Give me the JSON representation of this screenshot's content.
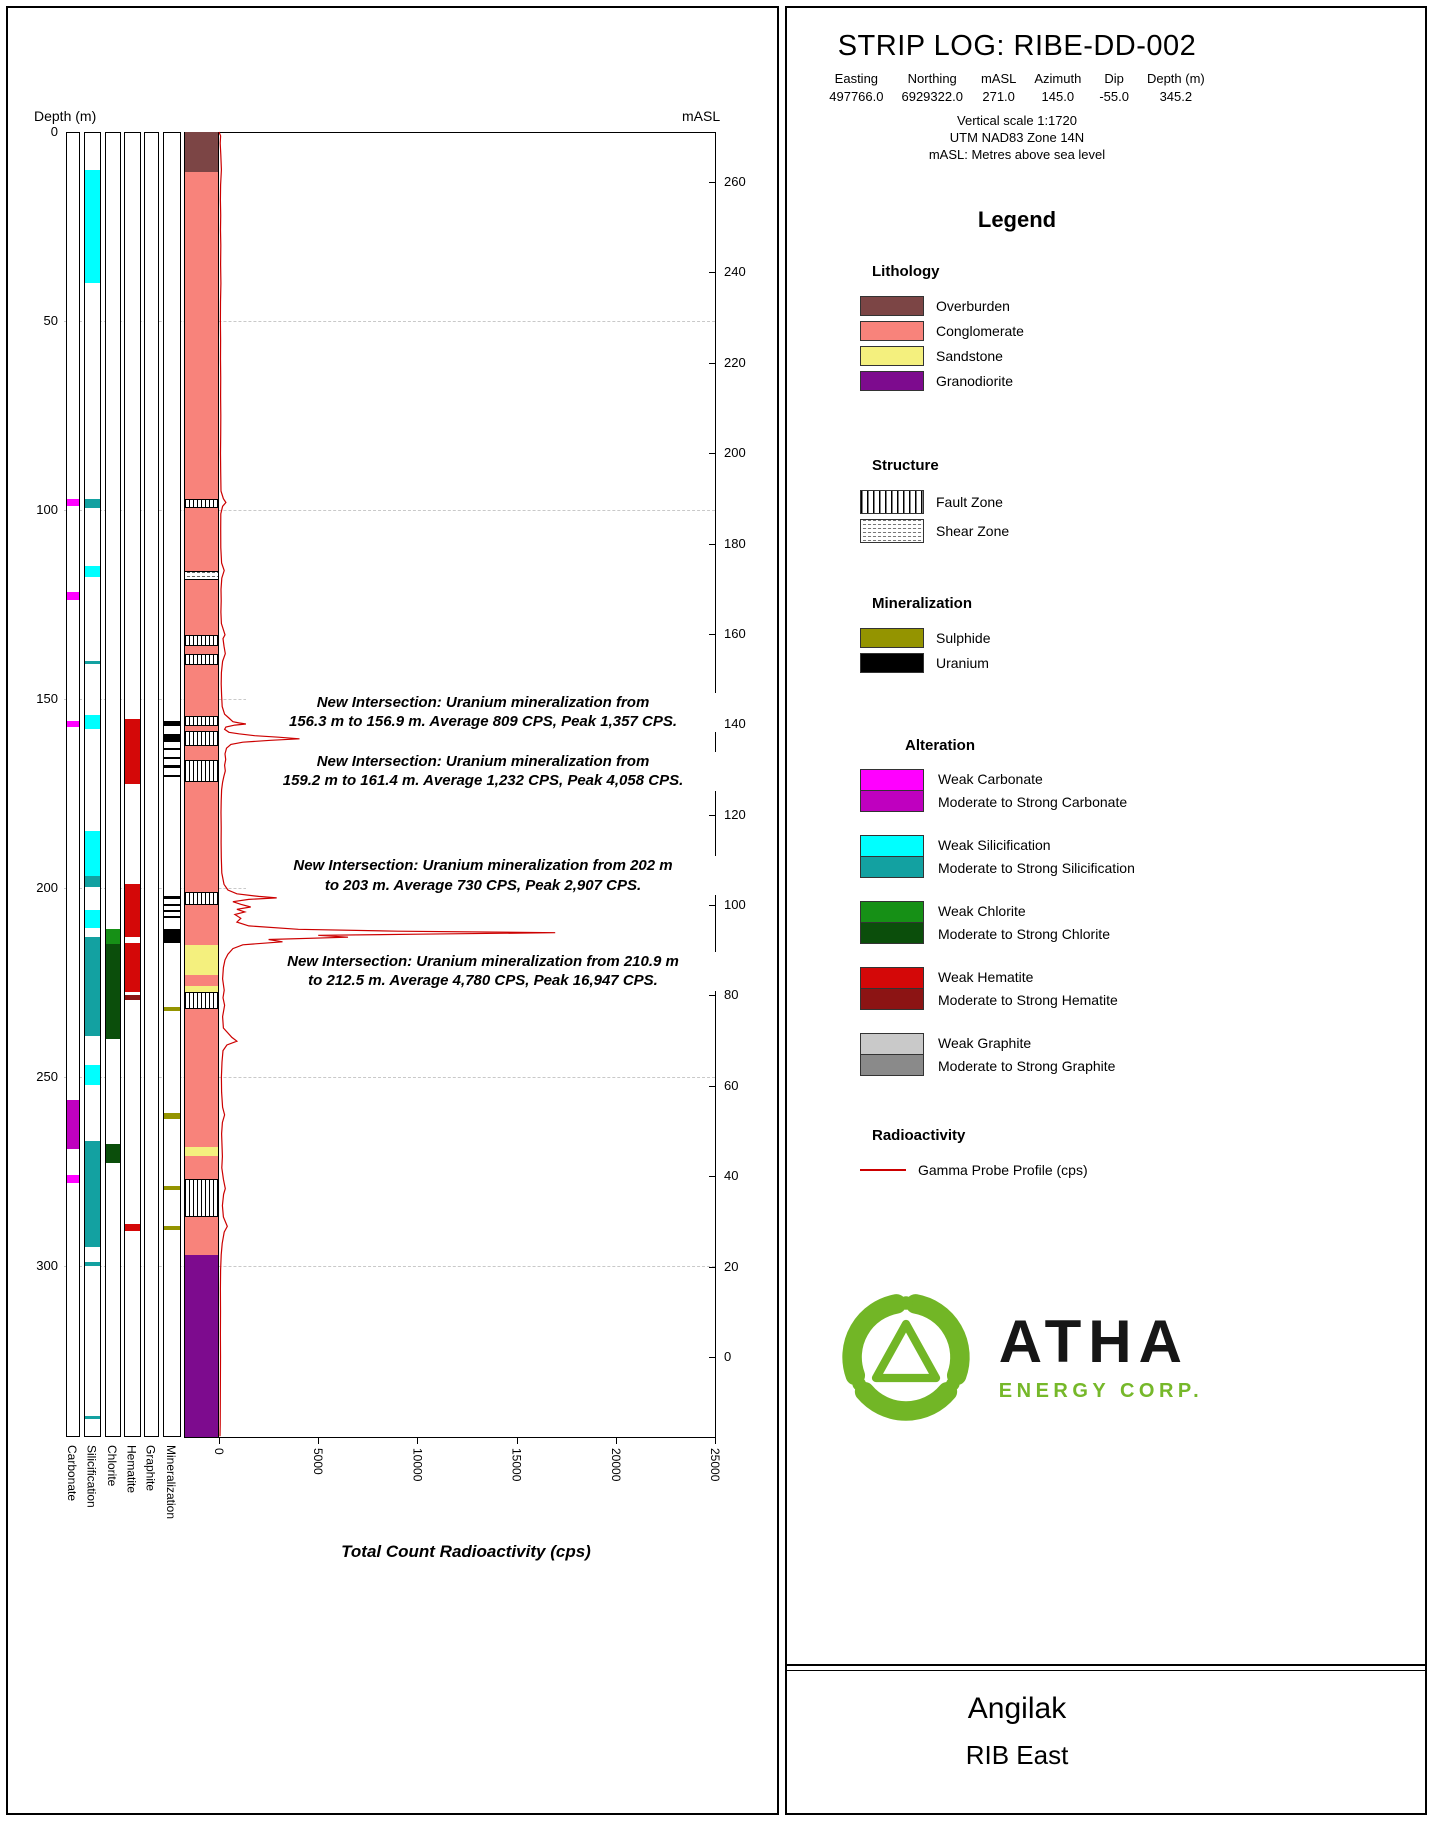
{
  "header": {
    "title": "STRIP LOG: RIBE-DD-002",
    "coords": {
      "headers": [
        "Easting",
        "Northing",
        "mASL",
        "Azimuth",
        "Dip",
        "Depth (m)"
      ],
      "values": [
        "497766.0",
        "6929322.0",
        "271.0",
        "145.0",
        "-55.0",
        "345.2"
      ]
    },
    "scale_note": "Vertical scale 1:1720",
    "utm_note": "UTM NAD83 Zone 14N",
    "masl_note": "mASL: Metres above sea level"
  },
  "legend": {
    "heading": "Legend",
    "sections": [
      {
        "title": "Lithology",
        "type": "swatch",
        "items": [
          {
            "label": "Overburden",
            "key": "overburden"
          },
          {
            "label": "Conglomerate",
            "key": "conglomerate"
          },
          {
            "label": "Sandstone",
            "key": "sandstone"
          },
          {
            "label": "Granodiorite",
            "key": "granodiorite"
          }
        ]
      },
      {
        "title": "Structure",
        "type": "pattern",
        "items": [
          {
            "label": "Fault Zone",
            "pattern": "fault"
          },
          {
            "label": "Shear Zone",
            "pattern": "shear"
          }
        ]
      },
      {
        "title": "Mineralization",
        "type": "swatch",
        "items": [
          {
            "label": "Sulphide",
            "key": "sulphide"
          },
          {
            "label": "Uranium",
            "key": "uranium"
          }
        ]
      },
      {
        "title": "Alteration",
        "type": "pairs",
        "pairs": [
          {
            "track": "carbonate",
            "weak_label": "Weak Carbonate",
            "strong_label": "Moderate to Strong Carbonate"
          },
          {
            "track": "silicification",
            "weak_label": "Weak Silicification",
            "strong_label": "Moderate to Strong Silicification"
          },
          {
            "track": "chlorite",
            "weak_label": "Weak Chlorite",
            "strong_label": "Moderate to Strong Chlorite"
          },
          {
            "track": "hematite",
            "weak_label": "Weak Hematite",
            "strong_label": "Moderate to Strong Hematite"
          },
          {
            "track": "graphite",
            "weak_label": "Weak Graphite",
            "strong_label": "Moderate to Strong Graphite"
          }
        ]
      },
      {
        "title": "Radioactivity",
        "type": "line",
        "items": [
          {
            "label": "Gamma Probe Profile (cps)",
            "key": "gamma"
          }
        ]
      }
    ]
  },
  "logo": {
    "name": "ATHA",
    "subtitle": "ENERGY CORP.",
    "icon_color": "#72b626"
  },
  "footer": {
    "project": "Angilak",
    "area": "RIB East"
  },
  "chart_data": {
    "type": "line",
    "title": "STRIP LOG: RIBE-DD-002",
    "x_axis": {
      "label": "Total Count Radioactivity (cps)",
      "ticks": [
        0,
        5000,
        10000,
        15000,
        20000,
        25000
      ],
      "range": [
        0,
        25000
      ]
    },
    "depth_axis": {
      "label": "Depth (m)",
      "ticks": [
        0,
        50,
        100,
        150,
        200,
        250,
        300
      ],
      "range": [
        0,
        345.2
      ]
    },
    "masl_axis": {
      "label": "mASL",
      "ticks": [
        260,
        240,
        220,
        200,
        180,
        160,
        140,
        120,
        100,
        80,
        60,
        40,
        20,
        0
      ],
      "collar_masl": 271.0
    },
    "track_labels": [
      "Carbonate",
      "Silicification",
      "Chlorite",
      "Hematite",
      "Graphite",
      "Mineralization"
    ],
    "colors": {
      "overburden": "#7c4545",
      "conglomerate": "#f8837b",
      "sandstone": "#f4f07e",
      "granodiorite": "#7d0b8e",
      "carbonate_weak": "#ff00ff",
      "carbonate_strong": "#bf00bf",
      "silicification_weak": "#00ffff",
      "silicification_strong": "#13a1a1",
      "chlorite_weak": "#169016",
      "chlorite_strong": "#0b4e0b",
      "hematite_weak": "#d40808",
      "hematite_strong": "#8c1414",
      "graphite_weak": "#c9c9c9",
      "graphite_strong": "#8a8a8a",
      "sulphide": "#949400",
      "uranium": "#000000",
      "gamma": "#cc0000"
    },
    "lithology_intervals": [
      {
        "from": 10.5,
        "to": 297,
        "unit": "Conglomerate"
      },
      {
        "from": 215,
        "to": 223,
        "unit": "Sandstone"
      },
      {
        "from": 226,
        "to": 231,
        "unit": "Sandstone"
      },
      {
        "from": 268.5,
        "to": 271,
        "unit": "Sandstone"
      },
      {
        "from": 0,
        "to": 10.5,
        "unit": "Overburden"
      },
      {
        "from": 297,
        "to": 345.2,
        "unit": "Granodiorite"
      }
    ],
    "structures": {
      "fault_zones": [
        {
          "from": 97,
          "to": 99.5
        },
        {
          "from": 133,
          "to": 136
        },
        {
          "from": 138,
          "to": 141
        },
        {
          "from": 154.5,
          "to": 157
        },
        {
          "from": 158.5,
          "to": 162.5
        },
        {
          "from": 166,
          "to": 172
        },
        {
          "from": 201,
          "to": 204.5
        },
        {
          "from": 227.5,
          "to": 232
        },
        {
          "from": 277,
          "to": 287
        }
      ],
      "shear_zones": [
        {
          "from": 116,
          "to": 118.5
        }
      ]
    },
    "mineralization": {
      "uranium": [
        {
          "from": 155.9,
          "to": 157
        },
        {
          "from": 159.2,
          "to": 161.4
        },
        {
          "from": 163,
          "to": 163.6
        },
        {
          "from": 165.2,
          "to": 165.8
        },
        {
          "from": 167.5,
          "to": 168.2
        },
        {
          "from": 170,
          "to": 170.5
        },
        {
          "from": 202,
          "to": 203
        },
        {
          "from": 204.2,
          "to": 204.8
        },
        {
          "from": 205.8,
          "to": 206.4
        },
        {
          "from": 207.4,
          "to": 207.9
        },
        {
          "from": 210.9,
          "to": 214.6
        }
      ],
      "sulphide": [
        {
          "from": 231.4,
          "to": 232.4
        },
        {
          "from": 259.4,
          "to": 261
        },
        {
          "from": 278.8,
          "to": 279.8
        },
        {
          "from": 289.4,
          "to": 290.4
        }
      ]
    },
    "alteration": {
      "carbonate": [
        {
          "from": 97,
          "to": 99,
          "grade": "weak"
        },
        {
          "from": 121.8,
          "to": 123.8,
          "grade": "weak"
        },
        {
          "from": 155.8,
          "to": 157.4,
          "grade": "weak"
        },
        {
          "from": 256,
          "to": 269,
          "grade": "strong"
        },
        {
          "from": 275.8,
          "to": 278,
          "grade": "weak"
        }
      ],
      "silicification": [
        {
          "from": 10,
          "to": 40,
          "grade": "weak"
        },
        {
          "from": 97,
          "to": 99.5,
          "grade": "strong"
        },
        {
          "from": 114.8,
          "to": 117.6,
          "grade": "weak"
        },
        {
          "from": 139.8,
          "to": 140.6,
          "grade": "strong"
        },
        {
          "from": 154.3,
          "to": 158,
          "grade": "weak"
        },
        {
          "from": 184.8,
          "to": 196.8,
          "grade": "weak"
        },
        {
          "from": 196.8,
          "to": 199.6,
          "grade": "strong"
        },
        {
          "from": 205.8,
          "to": 210.6,
          "grade": "weak"
        },
        {
          "from": 213,
          "to": 239.2,
          "grade": "strong"
        },
        {
          "from": 246.8,
          "to": 252,
          "grade": "weak"
        },
        {
          "from": 267,
          "to": 295,
          "grade": "strong"
        },
        {
          "from": 299,
          "to": 300,
          "grade": "strong"
        },
        {
          "from": 339.6,
          "to": 340.4,
          "grade": "strong"
        }
      ],
      "chlorite": [
        {
          "from": 210.8,
          "to": 214.8,
          "grade": "weak"
        },
        {
          "from": 214.8,
          "to": 240,
          "grade": "strong"
        },
        {
          "from": 267.8,
          "to": 272.6,
          "grade": "strong"
        }
      ],
      "hematite": [
        {
          "from": 155.4,
          "to": 172.6,
          "grade": "weak"
        },
        {
          "from": 199,
          "to": 213,
          "grade": "weak"
        },
        {
          "from": 214.6,
          "to": 227.6,
          "grade": "weak"
        },
        {
          "from": 228.4,
          "to": 229.6,
          "grade": "strong"
        },
        {
          "from": 288.8,
          "to": 290.6,
          "grade": "weak"
        }
      ],
      "graphite": []
    },
    "gamma_profile": {
      "name": "Gamma Probe Profile (cps)",
      "points": [
        [
          0,
          0
        ],
        [
          1,
          80
        ],
        [
          3,
          60
        ],
        [
          6,
          90
        ],
        [
          10,
          120
        ],
        [
          14,
          80
        ],
        [
          18,
          70
        ],
        [
          22,
          85
        ],
        [
          26,
          75
        ],
        [
          30,
          90
        ],
        [
          35,
          80
        ],
        [
          40,
          95
        ],
        [
          45,
          75
        ],
        [
          50,
          70
        ],
        [
          55,
          80
        ],
        [
          60,
          75
        ],
        [
          65,
          85
        ],
        [
          70,
          80
        ],
        [
          75,
          90
        ],
        [
          80,
          85
        ],
        [
          85,
          75
        ],
        [
          90,
          85
        ],
        [
          95,
          100
        ],
        [
          97,
          220
        ],
        [
          98,
          350
        ],
        [
          99,
          180
        ],
        [
          101,
          90
        ],
        [
          105,
          85
        ],
        [
          110,
          90
        ],
        [
          114,
          130
        ],
        [
          116,
          260
        ],
        [
          118,
          140
        ],
        [
          121,
          100
        ],
        [
          124,
          110
        ],
        [
          127,
          95
        ],
        [
          130,
          120
        ],
        [
          133,
          300
        ],
        [
          134,
          200
        ],
        [
          136,
          250
        ],
        [
          138,
          320
        ],
        [
          140,
          180
        ],
        [
          143,
          120
        ],
        [
          146,
          110
        ],
        [
          149,
          130
        ],
        [
          152,
          160
        ],
        [
          154,
          280
        ],
        [
          155,
          500
        ],
        [
          156,
          700
        ],
        [
          156.3,
          1000
        ],
        [
          156.6,
          1357
        ],
        [
          156.9,
          800
        ],
        [
          157.4,
          350
        ],
        [
          158,
          280
        ],
        [
          158.8,
          500
        ],
        [
          159.2,
          1000
        ],
        [
          159.7,
          1800
        ],
        [
          160.1,
          3000
        ],
        [
          160.5,
          4058
        ],
        [
          160.9,
          2600
        ],
        [
          161.4,
          1200
        ],
        [
          162,
          600
        ],
        [
          163,
          380
        ],
        [
          164.5,
          300
        ],
        [
          166,
          340
        ],
        [
          167.5,
          280
        ],
        [
          169,
          320
        ],
        [
          170.5,
          240
        ],
        [
          172,
          180
        ],
        [
          174,
          130
        ],
        [
          177,
          110
        ],
        [
          180,
          100
        ],
        [
          184,
          110
        ],
        [
          188,
          105
        ],
        [
          192,
          115
        ],
        [
          196,
          140
        ],
        [
          199,
          250
        ],
        [
          200.5,
          450
        ],
        [
          201.5,
          900
        ],
        [
          202.2,
          2000
        ],
        [
          202.6,
          2907
        ],
        [
          203,
          1500
        ],
        [
          203.6,
          700
        ],
        [
          204.3,
          1100
        ],
        [
          205,
          1600
        ],
        [
          205.6,
          900
        ],
        [
          206.3,
          1300
        ],
        [
          207,
          800
        ],
        [
          208,
          1100
        ],
        [
          209,
          900
        ],
        [
          210,
          1500
        ],
        [
          210.9,
          4000
        ],
        [
          211.4,
          9000
        ],
        [
          211.8,
          16947
        ],
        [
          212.2,
          10000
        ],
        [
          212.5,
          5000
        ],
        [
          213,
          6500
        ],
        [
          213.6,
          2500
        ],
        [
          214.2,
          3200
        ],
        [
          215,
          1200
        ],
        [
          216,
          700
        ],
        [
          217.5,
          450
        ],
        [
          219,
          300
        ],
        [
          221,
          220
        ],
        [
          224,
          180
        ],
        [
          227,
          260
        ],
        [
          229,
          200
        ],
        [
          231,
          280
        ],
        [
          234,
          180
        ],
        [
          237,
          220
        ],
        [
          239.5,
          650
        ],
        [
          240.5,
          900
        ],
        [
          241.5,
          400
        ],
        [
          243,
          200
        ],
        [
          246,
          150
        ],
        [
          250,
          120
        ],
        [
          254,
          130
        ],
        [
          258,
          180
        ],
        [
          260,
          280
        ],
        [
          262,
          170
        ],
        [
          265,
          130
        ],
        [
          268,
          150
        ],
        [
          271,
          170
        ],
        [
          274,
          140
        ],
        [
          277,
          220
        ],
        [
          279.5,
          320
        ],
        [
          281,
          230
        ],
        [
          284,
          170
        ],
        [
          287,
          220
        ],
        [
          289.5,
          420
        ],
        [
          291,
          260
        ],
        [
          294,
          160
        ],
        [
          297,
          110
        ],
        [
          301,
          80
        ],
        [
          306,
          70
        ],
        [
          312,
          75
        ],
        [
          318,
          70
        ],
        [
          324,
          75
        ],
        [
          330,
          70
        ],
        [
          336,
          65
        ],
        [
          342,
          60
        ],
        [
          345,
          50
        ]
      ]
    },
    "annotations": [
      {
        "depth": 148.3,
        "lines": [
          "New Intersection: Uranium mineralization from",
          "156.3 m to 156.9 m. Average 809 CPS, Peak 1,357 CPS."
        ]
      },
      {
        "depth": 163.9,
        "lines": [
          "New Intersection: Uranium mineralization from",
          "159.2 m to 161.4 m. Average 1,232 CPS, Peak 4,058 CPS."
        ]
      },
      {
        "depth": 191.6,
        "lines": [
          "New Intersection: Uranium mineralization from 202 m",
          "to 203 m. Average 730 CPS, Peak 2,907 CPS."
        ]
      },
      {
        "depth": 216.8,
        "lines": [
          "New Intersection: Uranium mineralization from 210.9 m",
          "to 212.5 m. Average 4,780 CPS, Peak 16,947 CPS."
        ]
      }
    ]
  }
}
